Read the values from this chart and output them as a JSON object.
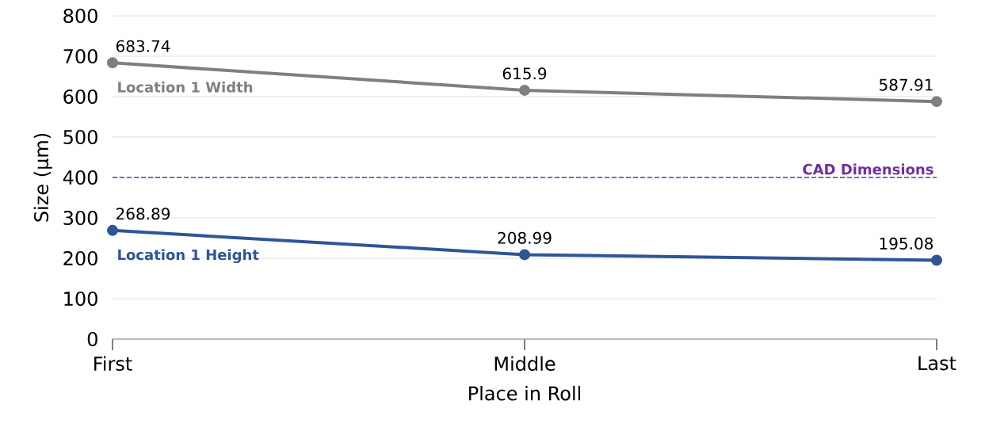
{
  "chart_data": {
    "type": "line",
    "xlabel": "Place in Roll",
    "ylabel": "Size (µm)",
    "categories": [
      "First",
      "Middle",
      "Last"
    ],
    "series": [
      {
        "name": "Location 1 Width",
        "color": "#7f7f7f",
        "values": [
          683.74,
          615.9,
          587.91
        ]
      },
      {
        "name": "Location 1 Height",
        "color": "#2f5597",
        "values": [
          268.89,
          208.99,
          195.08
        ]
      }
    ],
    "ylim": [
      0,
      800
    ],
    "yticks": [
      0,
      100,
      200,
      300,
      400,
      500,
      600,
      700,
      800
    ],
    "ref_lines": [
      {
        "axis": "y",
        "value": 400,
        "label": "CAD Dimensions",
        "color": "#7030a0",
        "line_style": "dashed"
      }
    ],
    "data_labels": true,
    "grid": "y",
    "legend": false,
    "marker": "circle",
    "line_style": "solid"
  }
}
